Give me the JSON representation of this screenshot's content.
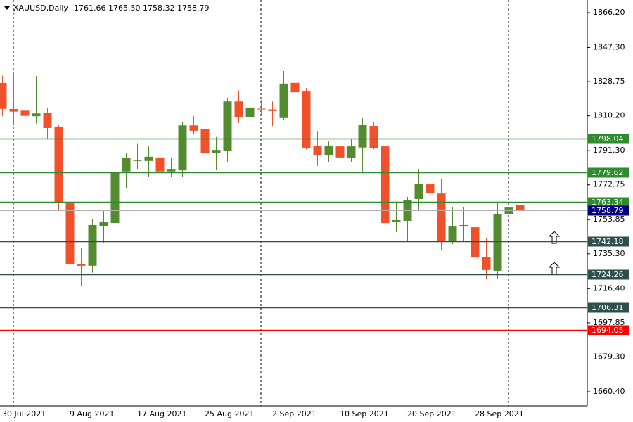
{
  "chart_data": {
    "type": "candlestick",
    "title": "XAUUSD,Daily",
    "ohlc_labels": [
      "1761.66",
      "1765.50",
      "1758.32",
      "1758.79"
    ],
    "categories": [
      "30 Jul 2021",
      null,
      null,
      null,
      null,
      null,
      "9 Aug 2021",
      null,
      null,
      null,
      null,
      null,
      "17 Aug 2021",
      null,
      null,
      null,
      null,
      null,
      "25 Aug 2021",
      null,
      null,
      null,
      null,
      null,
      "2 Sep 2021",
      null,
      null,
      null,
      null,
      null,
      "10 Sep 2021",
      null,
      null,
      null,
      null,
      null,
      "20 Sep 2021",
      null,
      null,
      null,
      null,
      null,
      "28 Sep 2021",
      null,
      null,
      null,
      null
    ],
    "open": [
      1828,
      1813.9,
      1813,
      1810,
      1812,
      1804,
      1762.7,
      1729.5,
      1728.8,
      1750.5,
      1752,
      1780,
      1785.7,
      1785.7,
      1787.6,
      1780,
      1780.6,
      1805,
      1803,
      1790,
      1791,
      1818,
      1809.3,
      1814.1,
      1813.7,
      1809,
      1828.1,
      1823.4,
      1794,
      1788.7,
      1793.6,
      1787.2,
      1793,
      1804.7,
      1793.6,
      1752.8,
      1753.2,
      1765,
      1773,
      1768,
      1742.5,
      1750.1,
      1749.7,
      1733.7,
      1726.1,
      1757,
      1761.66
    ],
    "high": [
      1832,
      1833,
      1815.8,
      1831.8,
      1814.7,
      1805,
      1764,
      1738.6,
      1754,
      1758.5,
      1781.4,
      1789.8,
      1795,
      1793.6,
      1792.5,
      1787.6,
      1807,
      1810,
      1805,
      1798.6,
      1819.6,
      1824,
      1818.8,
      1818.8,
      1818,
      1834.5,
      1830.3,
      1825.3,
      1802,
      1796.3,
      1803.6,
      1797.5,
      1808.9,
      1807,
      1795.6,
      1763.1,
      1766.2,
      1781.4,
      1787.2,
      1776,
      1760.4,
      1760.8,
      1754.3,
      1744,
      1762.7,
      1763.9,
      1765.5
    ],
    "low": [
      1810,
      1805,
      1807.5,
      1806,
      1797.8,
      1758.5,
      1687,
      1717.7,
      1725,
      1741.3,
      1751.7,
      1770.7,
      1781.4,
      1777.2,
      1773.8,
      1777.2,
      1777,
      1800,
      1781,
      1781,
      1785.3,
      1806.3,
      1800.9,
      1810.5,
      1804.7,
      1808.2,
      1821.1,
      1792,
      1783,
      1784.9,
      1786.8,
      1785.3,
      1780,
      1792,
      1744.4,
      1747,
      1742.5,
      1758.5,
      1764.2,
      1737.1,
      1740.6,
      1742.1,
      1728.4,
      1721.5,
      1721.9,
      1751.2,
      1758.32
    ],
    "close": [
      1814,
      1812.5,
      1810.2,
      1811.5,
      1803.6,
      1763,
      1729.9,
      1728.8,
      1750.9,
      1752.4,
      1779.9,
      1787.2,
      1786.4,
      1788,
      1780,
      1781.4,
      1805,
      1802.1,
      1789.8,
      1791.7,
      1818,
      1809.7,
      1814.7,
      1813.7,
      1812.8,
      1827.7,
      1823,
      1792.9,
      1788.7,
      1794,
      1787.6,
      1793.6,
      1805.1,
      1792.9,
      1752,
      1753.6,
      1764.6,
      1773.4,
      1768.1,
      1742.1,
      1750.1,
      1750.9,
      1733.3,
      1726.5,
      1757,
      1760.4,
      1758.79
    ],
    "up_color": "#558b2f",
    "down_color": "#f0502a",
    "ylim": [
      1652.76,
      1873.07
    ],
    "yticks": [
      {
        "value": 1866.2,
        "label": "1866.20"
      },
      {
        "value": 1847.3,
        "label": "1847.30"
      },
      1828.75,
      {
        "value": 1810.2,
        "label": "1810.20"
      },
      {
        "value": 1791.3,
        "label": "1791.30"
      },
      1772.75,
      1753.85,
      {
        "value": 1735.3,
        "label": "1735.30"
      },
      {
        "value": 1716.4,
        "label": "1716.40"
      },
      1697.85,
      {
        "value": 1679.3,
        "label": "1679.30"
      },
      {
        "value": 1660.4,
        "label": "1660.40"
      }
    ],
    "levels": [
      {
        "value": 1798.04,
        "color": "#2e8b2e"
      },
      {
        "value": 1779.62,
        "color": "#2e8b2e"
      },
      {
        "value": 1763.34,
        "color": "#2e8b2e"
      },
      {
        "value": 1758.79,
        "color": "#000080"
      },
      {
        "value": 1742.18,
        "color": "#2f4f4f"
      },
      {
        "value": 1724.26,
        "color": "#2f4f4f"
      },
      {
        "value": 1706.31,
        "color": "#2f4f4f"
      },
      {
        "value": 1694.05,
        "color": "#ff0000"
      }
    ]
  }
}
